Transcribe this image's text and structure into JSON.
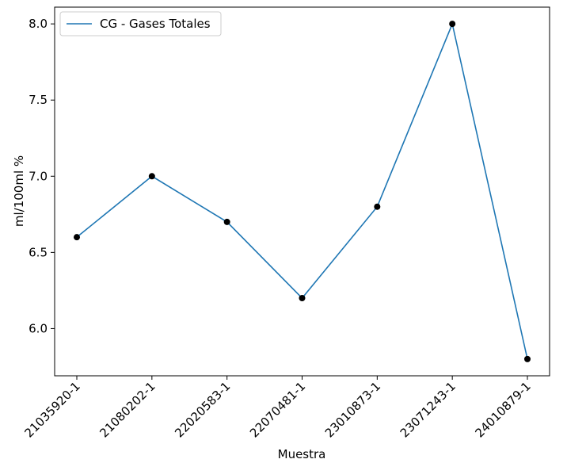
{
  "chart_data": {
    "type": "line",
    "title": "",
    "xlabel": "Muestra",
    "ylabel": "ml/100ml %",
    "categories": [
      "21035920-1",
      "21080202-1",
      "22020583-1",
      "22070481-1",
      "23010873-1",
      "23071243-1",
      "24010879-1"
    ],
    "series": [
      {
        "name": "CG - Gases Totales",
        "values": [
          6.6,
          7.0,
          6.7,
          6.2,
          6.8,
          8.0,
          5.8
        ]
      }
    ],
    "yticks": [
      "6.0",
      "6.5",
      "7.0",
      "7.5",
      "8.0"
    ],
    "ylim": [
      5.69,
      8.11
    ],
    "grid": false,
    "legend_position": "top-left",
    "colors": {
      "line": "#1f77b4",
      "marker": "#000000",
      "axes": "#000000"
    }
  }
}
